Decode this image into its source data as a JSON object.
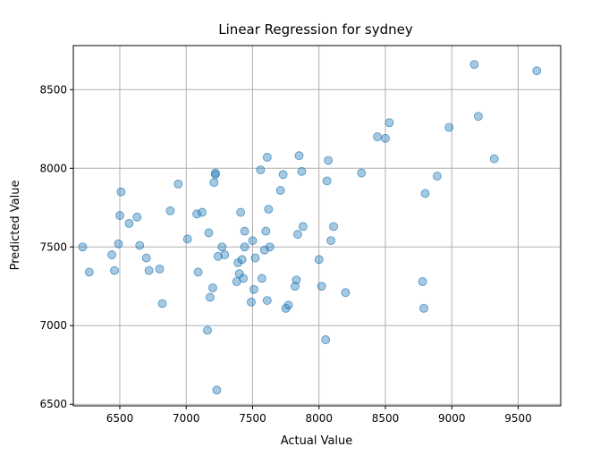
{
  "chart_data": {
    "type": "scatter",
    "title": "Linear Regression for sydney",
    "xlabel": "Actual Value",
    "ylabel": "Predicted Value",
    "xlim": [
      6150,
      9820
    ],
    "ylim": [
      6490,
      8780
    ],
    "xticks": [
      6500,
      7000,
      7500,
      8000,
      8500,
      9000,
      9500
    ],
    "yticks": [
      6500,
      7000,
      7500,
      8000,
      8500
    ],
    "grid": true,
    "marker_color": "#1f77b4",
    "marker_alpha": 0.4,
    "points": [
      [
        6220,
        7500
      ],
      [
        6270,
        7340
      ],
      [
        6440,
        7450
      ],
      [
        6460,
        7350
      ],
      [
        6490,
        7520
      ],
      [
        6500,
        7700
      ],
      [
        6510,
        7850
      ],
      [
        6570,
        7650
      ],
      [
        6630,
        7690
      ],
      [
        6650,
        7510
      ],
      [
        6700,
        7430
      ],
      [
        6720,
        7350
      ],
      [
        6800,
        7360
      ],
      [
        6820,
        7140
      ],
      [
        6880,
        7730
      ],
      [
        6940,
        7900
      ],
      [
        7010,
        7550
      ],
      [
        7080,
        7710
      ],
      [
        7090,
        7340
      ],
      [
        7120,
        7720
      ],
      [
        7160,
        6970
      ],
      [
        7170,
        7590
      ],
      [
        7180,
        7180
      ],
      [
        7200,
        7240
      ],
      [
        7210,
        7910
      ],
      [
        7220,
        7970
      ],
      [
        7220,
        7960
      ],
      [
        7230,
        6590
      ],
      [
        7240,
        7440
      ],
      [
        7270,
        7500
      ],
      [
        7290,
        7450
      ],
      [
        7380,
        7280
      ],
      [
        7390,
        7400
      ],
      [
        7400,
        7330
      ],
      [
        7410,
        7720
      ],
      [
        7420,
        7420
      ],
      [
        7430,
        7300
      ],
      [
        7440,
        7600
      ],
      [
        7440,
        7500
      ],
      [
        7490,
        7150
      ],
      [
        7500,
        7540
      ],
      [
        7510,
        7230
      ],
      [
        7520,
        7430
      ],
      [
        7560,
        7990
      ],
      [
        7570,
        7300
      ],
      [
        7590,
        7480
      ],
      [
        7600,
        7600
      ],
      [
        7610,
        8070
      ],
      [
        7610,
        7160
      ],
      [
        7620,
        7740
      ],
      [
        7630,
        7500
      ],
      [
        7710,
        7860
      ],
      [
        7730,
        7960
      ],
      [
        7750,
        7110
      ],
      [
        7770,
        7130
      ],
      [
        7820,
        7250
      ],
      [
        7830,
        7290
      ],
      [
        7840,
        7580
      ],
      [
        7850,
        8080
      ],
      [
        7870,
        7980
      ],
      [
        7880,
        7630
      ],
      [
        8000,
        7420
      ],
      [
        8020,
        7250
      ],
      [
        8050,
        6910
      ],
      [
        8060,
        7920
      ],
      [
        8070,
        8050
      ],
      [
        8090,
        7540
      ],
      [
        8110,
        7630
      ],
      [
        8200,
        7210
      ],
      [
        8320,
        7970
      ],
      [
        8440,
        8200
      ],
      [
        8500,
        8190
      ],
      [
        8530,
        8290
      ],
      [
        8780,
        7280
      ],
      [
        8790,
        7110
      ],
      [
        8800,
        7840
      ],
      [
        8890,
        7950
      ],
      [
        8980,
        8260
      ],
      [
        9170,
        8660
      ],
      [
        9200,
        8330
      ],
      [
        9320,
        8060
      ],
      [
        9640,
        8620
      ]
    ]
  }
}
